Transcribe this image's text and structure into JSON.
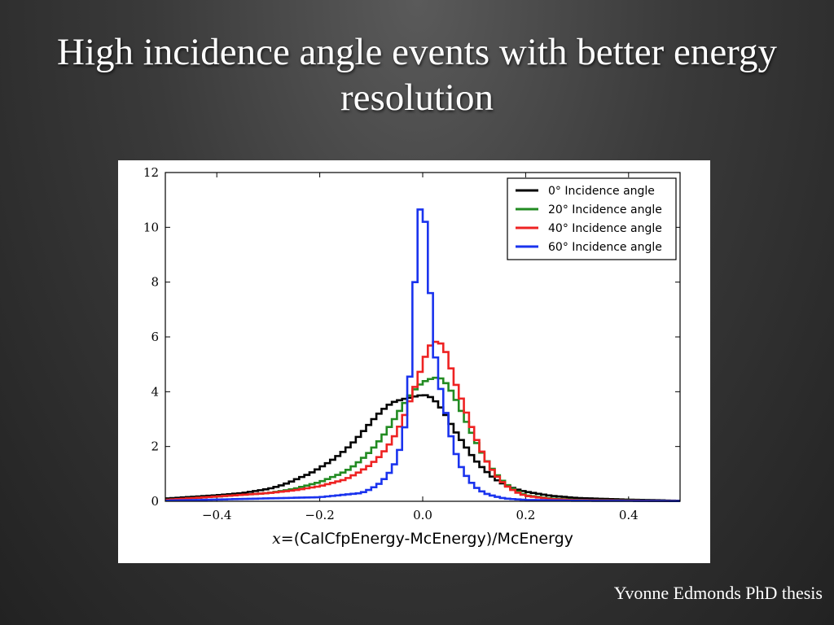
{
  "slide": {
    "title": "High incidence angle events with better energy resolution",
    "credit": "Yvonne Edmonds PhD thesis"
  },
  "chart_data": {
    "type": "line",
    "title": "",
    "xlabel_var": "x",
    "xlabel_rest": "=(CalCfpEnergy-McEnergy)/McEnergy",
    "ylabel": "",
    "xlim": [
      -0.5,
      0.5
    ],
    "ylim": [
      0,
      12
    ],
    "xticks": [
      -0.4,
      -0.2,
      0.0,
      0.2,
      0.4
    ],
    "xtick_labels": [
      "−0.4",
      "−0.2",
      "0.0",
      "0.2",
      "0.4"
    ],
    "yticks": [
      0,
      2,
      4,
      6,
      8,
      10,
      12
    ],
    "ytick_labels": [
      "0",
      "2",
      "4",
      "6",
      "8",
      "10",
      "12"
    ],
    "grid": false,
    "legend_position": "top-right",
    "step": true,
    "bin_width": 0.01,
    "series": [
      {
        "name": "0° Incidence angle",
        "color": "#000000",
        "x": [
          -0.5,
          -0.4,
          -0.35,
          -0.3,
          -0.28,
          -0.26,
          -0.24,
          -0.22,
          -0.2,
          -0.18,
          -0.16,
          -0.14,
          -0.12,
          -0.1,
          -0.08,
          -0.06,
          -0.04,
          -0.02,
          -0.01,
          0.0,
          0.01,
          0.02,
          0.03,
          0.04,
          0.05,
          0.06,
          0.08,
          0.1,
          0.12,
          0.14,
          0.16,
          0.18,
          0.2,
          0.25,
          0.3,
          0.4,
          0.5
        ],
        "y": [
          0.1,
          0.22,
          0.3,
          0.45,
          0.55,
          0.68,
          0.85,
          1.0,
          1.22,
          1.45,
          1.72,
          2.05,
          2.45,
          2.9,
          3.3,
          3.6,
          3.72,
          3.8,
          3.85,
          3.88,
          3.86,
          3.75,
          3.55,
          3.3,
          3.0,
          2.65,
          2.1,
          1.55,
          1.15,
          0.82,
          0.6,
          0.45,
          0.35,
          0.2,
          0.12,
          0.06,
          0.02
        ]
      },
      {
        "name": "20° Incidence angle",
        "color": "#228b22",
        "x": [
          -0.5,
          -0.3,
          -0.25,
          -0.2,
          -0.18,
          -0.16,
          -0.14,
          -0.12,
          -0.1,
          -0.08,
          -0.06,
          -0.04,
          -0.02,
          0.0,
          0.02,
          0.03,
          0.04,
          0.06,
          0.08,
          0.1,
          0.12,
          0.14,
          0.16,
          0.18,
          0.2,
          0.25,
          0.3,
          0.5
        ],
        "y": [
          0.05,
          0.3,
          0.45,
          0.7,
          0.85,
          1.0,
          1.2,
          1.5,
          1.85,
          2.3,
          2.85,
          3.45,
          4.0,
          4.35,
          4.5,
          4.52,
          4.45,
          3.9,
          3.1,
          2.3,
          1.6,
          1.05,
          0.65,
          0.4,
          0.22,
          0.1,
          0.05,
          0.01
        ]
      },
      {
        "name": "40° Incidence angle",
        "color": "#ee2222",
        "x": [
          -0.5,
          -0.3,
          -0.25,
          -0.2,
          -0.15,
          -0.12,
          -0.1,
          -0.08,
          -0.06,
          -0.04,
          -0.02,
          0.0,
          0.01,
          0.02,
          0.03,
          0.04,
          0.05,
          0.06,
          0.08,
          0.1,
          0.12,
          0.14,
          0.16,
          0.18,
          0.2,
          0.25,
          0.3,
          0.5
        ],
        "y": [
          0.05,
          0.3,
          0.4,
          0.55,
          0.8,
          1.1,
          1.35,
          1.7,
          2.2,
          2.9,
          3.9,
          5.0,
          5.55,
          5.82,
          5.82,
          5.7,
          5.2,
          4.5,
          3.5,
          2.45,
          1.6,
          1.0,
          0.6,
          0.35,
          0.2,
          0.08,
          0.04,
          0.01
        ]
      },
      {
        "name": "60° Incidence angle",
        "color": "#1a33ee",
        "x": [
          -0.5,
          -0.2,
          -0.12,
          -0.1,
          -0.08,
          -0.06,
          -0.05,
          -0.04,
          -0.03,
          -0.02,
          -0.01,
          0.0,
          0.01,
          0.02,
          0.03,
          0.04,
          0.05,
          0.06,
          0.07,
          0.08,
          0.1,
          0.12,
          0.14,
          0.16,
          0.2,
          0.3,
          0.5
        ],
        "y": [
          0.02,
          0.15,
          0.3,
          0.45,
          0.7,
          1.15,
          1.55,
          2.2,
          3.2,
          5.9,
          10.1,
          11.2,
          9.2,
          6.0,
          4.5,
          3.7,
          2.75,
          2.0,
          1.45,
          1.05,
          0.55,
          0.3,
          0.18,
          0.1,
          0.05,
          0.02,
          0.01
        ]
      }
    ]
  }
}
